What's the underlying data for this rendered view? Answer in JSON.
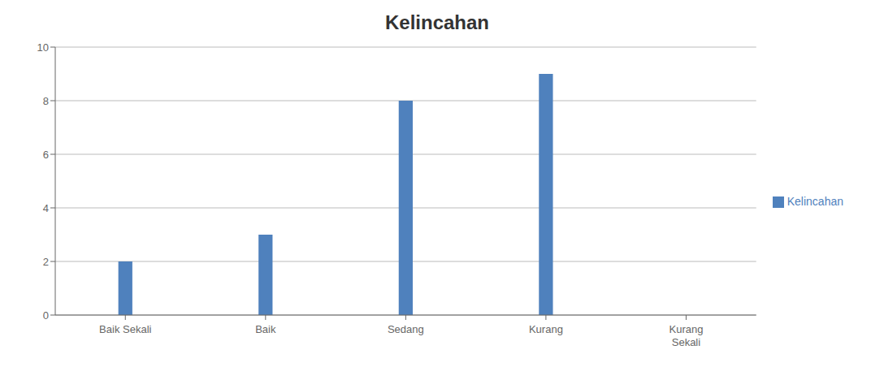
{
  "chart_data": {
    "type": "bar",
    "title": "Kelincahan",
    "categories": [
      "Baik Sekali",
      "Baik",
      "Sedang",
      "Kurang",
      "Kurang\nSekali"
    ],
    "series": [
      {
        "name": "Kelincahan",
        "color": "#4F81BD",
        "values": [
          2,
          3,
          8,
          9,
          0
        ]
      }
    ],
    "ylim": [
      0,
      10
    ],
    "yticks": [
      0,
      2,
      4,
      6,
      8,
      10
    ],
    "grid": true,
    "legend": "right"
  }
}
